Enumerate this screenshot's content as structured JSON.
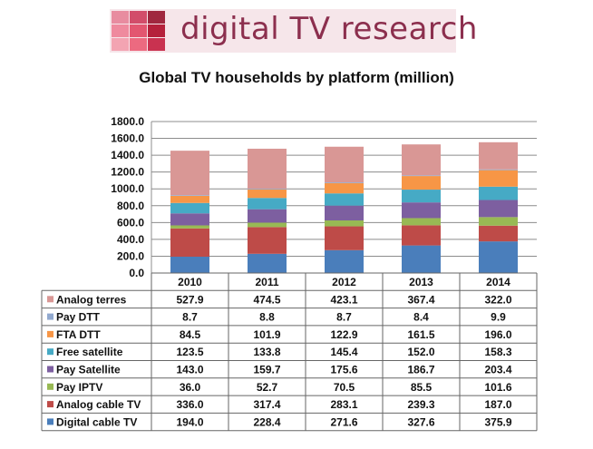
{
  "logo": {
    "text": "digital TV research",
    "colors": [
      "#e88ca0",
      "#d24d6a",
      "#a0283f",
      "#ef8a9e",
      "#e35670",
      "#b5213b",
      "#f3a4b2",
      "#ec6a80",
      "#c93250"
    ]
  },
  "chart_data": {
    "type": "bar",
    "stacked": true,
    "title": "Global TV households by platform (million)",
    "categories": [
      "2010",
      "2011",
      "2012",
      "2013",
      "2014"
    ],
    "ylim": [
      0,
      1800
    ],
    "yticks": [
      "0.0",
      "200.0",
      "400.0",
      "600.0",
      "800.0",
      "1000.0",
      "1200.0",
      "1400.0",
      "1600.0",
      "1800.0"
    ],
    "grid": true,
    "legend": "table-below",
    "series": [
      {
        "name": "Digital cable TV",
        "color": "#4a7ebb",
        "values": [
          194.0,
          228.4,
          271.6,
          327.6,
          375.9
        ],
        "labels": [
          "194.0",
          "228.4",
          "271.6",
          "327.6",
          "375.9"
        ]
      },
      {
        "name": "Analog cable TV",
        "color": "#be4b48",
        "values": [
          336.0,
          317.4,
          283.1,
          239.3,
          187.0
        ],
        "labels": [
          "336.0",
          "317.4",
          "283.1",
          "239.3",
          "187.0"
        ]
      },
      {
        "name": "Pay IPTV",
        "color": "#98b954",
        "values": [
          36.0,
          52.7,
          70.5,
          85.5,
          101.6
        ],
        "labels": [
          "36.0",
          "52.7",
          "70.5",
          "85.5",
          "101.6"
        ]
      },
      {
        "name": "Pay Satellite",
        "color": "#7d5fa0",
        "values": [
          143.0,
          159.7,
          175.6,
          186.7,
          203.4
        ],
        "labels": [
          "143.0",
          "159.7",
          "175.6",
          "186.7",
          "203.4"
        ]
      },
      {
        "name": "Free satellite",
        "color": "#46aac5",
        "values": [
          123.5,
          133.8,
          145.4,
          152.0,
          158.3
        ],
        "labels": [
          "123.5",
          "133.8",
          "145.4",
          "152.0",
          "158.3"
        ]
      },
      {
        "name": "FTA DTT",
        "color": "#f79646",
        "values": [
          84.5,
          101.9,
          122.9,
          161.5,
          196.0
        ],
        "labels": [
          "84.5",
          "101.9",
          "122.9",
          "161.5",
          "196.0"
        ]
      },
      {
        "name": "Pay DTT",
        "color": "#92a9cf",
        "values": [
          8.7,
          8.8,
          8.7,
          8.4,
          9.9
        ],
        "labels": [
          "8.7",
          "8.8",
          "8.7",
          "8.4",
          "9.9"
        ]
      },
      {
        "name": "Analog terres",
        "color": "#d99795",
        "values": [
          527.9,
          474.5,
          423.1,
          367.4,
          322.0
        ],
        "labels": [
          "527.9",
          "474.5",
          "423.1",
          "367.4",
          "322.0"
        ]
      }
    ]
  }
}
